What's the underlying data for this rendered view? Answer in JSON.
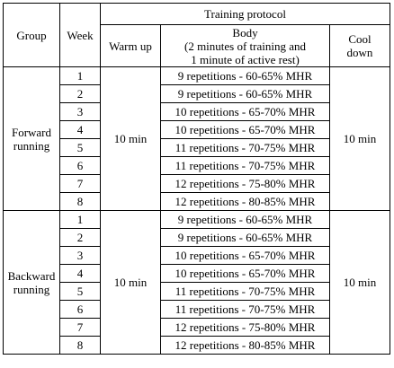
{
  "headers": {
    "group": "Group",
    "week": "Week",
    "protocol": "Training protocol",
    "warmup": "Warm up",
    "body_line1": "Body",
    "body_line2": "(2 minutes of training and",
    "body_line3": "1 minute of active rest)",
    "cooldown_line1": "Cool",
    "cooldown_line2": "down"
  },
  "groups": [
    {
      "name_line1": "Forward",
      "name_line2": "running",
      "warmup": "10 min",
      "cooldown": "10 min",
      "weeks": [
        "1",
        "2",
        "3",
        "4",
        "5",
        "6",
        "7",
        "8"
      ],
      "bodies": [
        "9 repetitions - 60-65% MHR",
        "9 repetitions - 60-65% MHR",
        "10 repetitions - 65-70% MHR",
        "10 repetitions - 65-70% MHR",
        "11 repetitions - 70-75% MHR",
        "11 repetitions - 70-75% MHR",
        "12 repetitions - 75-80% MHR",
        "12 repetitions - 80-85% MHR"
      ]
    },
    {
      "name_line1": "Backward",
      "name_line2": "running",
      "warmup": "10 min",
      "cooldown": "10 min",
      "weeks": [
        "1",
        "2",
        "3",
        "4",
        "5",
        "6",
        "7",
        "8"
      ],
      "bodies": [
        "9 repetitions - 60-65% MHR",
        "9 repetitions - 60-65% MHR",
        "10 repetitions - 65-70% MHR",
        "10 repetitions - 65-70% MHR",
        "11 repetitions - 70-75% MHR",
        "11 repetitions - 70-75% MHR",
        "12 repetitions - 75-80% MHR",
        "12 repetitions - 80-85% MHR"
      ]
    }
  ]
}
